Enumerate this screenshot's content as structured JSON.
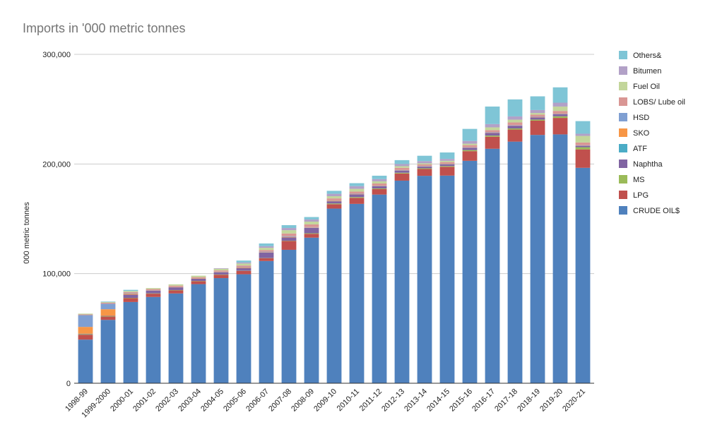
{
  "chart_data": {
    "type": "bar",
    "stacked": true,
    "title": "Imports in '000 metric tonnes",
    "ylabel": "000 metric tonnes",
    "xlabel": "",
    "ylim": [
      0,
      300000
    ],
    "yticks": [
      0,
      100000,
      200000,
      300000
    ],
    "ytick_labels": [
      "0",
      "100,000",
      "200,000",
      "300,000"
    ],
    "grid": true,
    "legend_position": "right",
    "categories": [
      "1998-99",
      "1999-2000",
      "2000-01",
      "2001-02",
      "2002-03",
      "2003-04",
      "2004-05",
      "2005-06",
      "2006-07",
      "2007-08",
      "2008-09",
      "2009-10",
      "2010-11",
      "2011-12",
      "2012-13",
      "2013-14",
      "2014-15",
      "2015-16",
      "2016-17",
      "2017-18",
      "2018-19",
      "2019-20",
      "2020-21"
    ],
    "series": [
      {
        "name": " CRUDE OIL$",
        "color": "#4f81bd",
        "values": [
          39800,
          57800,
          74100,
          78700,
          81900,
          90400,
          95900,
          99400,
          111500,
          121700,
          132800,
          159300,
          163600,
          172100,
          184800,
          189200,
          189400,
          202900,
          213900,
          220400,
          226500,
          227000,
          196500
        ]
      },
      {
        "name": "LPG",
        "color": "#c0504d",
        "values": [
          4500,
          3000,
          3500,
          3000,
          2800,
          2600,
          3000,
          3000,
          2500,
          8000,
          3500,
          4000,
          5500,
          5000,
          6500,
          6200,
          8000,
          8800,
          11000,
          11000,
          13000,
          15000,
          16800
        ]
      },
      {
        "name": "MS",
        "color": "#9bbb59",
        "values": [
          500,
          400,
          300,
          300,
          300,
          300,
          300,
          200,
          200,
          300,
          500,
          700,
          700,
          600,
          700,
          700,
          700,
          1000,
          1000,
          1000,
          1000,
          1500,
          2000
        ]
      },
      {
        "name": "Naphtha",
        "color": "#8064a2",
        "values": [
          400,
          300,
          3000,
          2500,
          2500,
          2000,
          2000,
          2500,
          5000,
          3000,
          5000,
          2000,
          2500,
          2000,
          2000,
          1500,
          1500,
          2000,
          2500,
          2500,
          2000,
          2000,
          1300
        ]
      },
      {
        "name": "ATF",
        "color": "#4bacc6",
        "values": [
          0,
          0,
          0,
          0,
          0,
          0,
          0,
          0,
          0,
          0,
          0,
          0,
          0,
          0,
          0,
          0,
          0,
          0,
          0,
          0,
          0,
          0,
          0
        ]
      },
      {
        "name": "SKO",
        "color": "#f79646",
        "values": [
          6200,
          6000,
          800,
          200,
          300,
          300,
          300,
          500,
          300,
          500,
          300,
          500,
          200,
          200,
          200,
          200,
          200,
          200,
          200,
          200,
          200,
          200,
          200
        ]
      },
      {
        "name": "HSD",
        "color": "#7f9fd2",
        "values": [
          10700,
          5000,
          500,
          200,
          200,
          200,
          300,
          300,
          500,
          600,
          300,
          300,
          300,
          300,
          300,
          300,
          300,
          300,
          300,
          300,
          300,
          200,
          300
        ]
      },
      {
        "name": "LOBS/ Lube oil",
        "color": "#d99694",
        "values": [
          700,
          900,
          1000,
          1000,
          1000,
          1000,
          1100,
          1500,
          1500,
          2500,
          2500,
          1800,
          2000,
          2000,
          2000,
          1500,
          1600,
          2000,
          2000,
          2500,
          2000,
          2500,
          2500
        ]
      },
      {
        "name": "Fuel Oil",
        "color": "#c3d69b",
        "values": [
          700,
          600,
          1000,
          900,
          1200,
          1300,
          1500,
          1800,
          2000,
          3000,
          2500,
          2000,
          2500,
          2000,
          1500,
          1000,
          1200,
          1300,
          2500,
          2500,
          1500,
          4000,
          6000
        ]
      },
      {
        "name": "Bitumen",
        "color": "#b2a1c7",
        "values": [
          0,
          0,
          0,
          0,
          0,
          0,
          500,
          1000,
          1500,
          2000,
          2000,
          2200,
          2500,
          2000,
          2000,
          2000,
          1700,
          2500,
          3000,
          3000,
          2700,
          3500,
          2000
        ]
      },
      {
        "name": "Others&",
        "color": "#7fc5d6",
        "values": [
          0,
          500,
          1000,
          0,
          0,
          0,
          0,
          1700,
          2500,
          2600,
          2200,
          2700,
          2700,
          3100,
          3500,
          4900,
          5900,
          11000,
          16000,
          15500,
          12500,
          14000,
          11500
        ]
      }
    ]
  }
}
